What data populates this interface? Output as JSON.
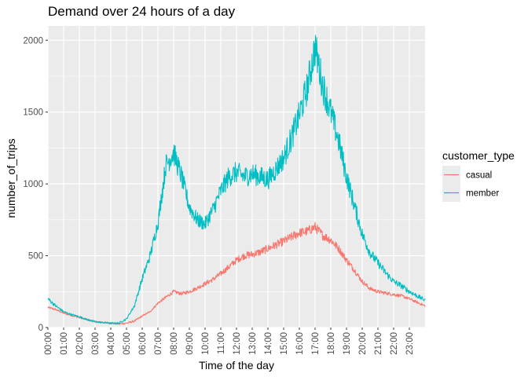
{
  "chart_data": {
    "type": "line",
    "title": "Demand over 24 hours of a day",
    "xlabel": "Time of the day",
    "ylabel": "number_of_trips",
    "x_unit": "hour of day (0-24)",
    "xlim": [
      0,
      24
    ],
    "ylim": [
      0,
      2100
    ],
    "y_ticks": [
      0,
      500,
      1000,
      1500,
      2000
    ],
    "x_tick_labels": [
      "00:00",
      "01:00",
      "02:00",
      "03:00",
      "04:00",
      "05:00",
      "06:00",
      "07:00",
      "08:00",
      "09:00",
      "10:00",
      "11:00",
      "12:00",
      "13:00",
      "14:00",
      "15:00",
      "16:00",
      "17:00",
      "18:00",
      "19:00",
      "20:00",
      "21:00",
      "22:00",
      "23:00"
    ],
    "grid": true,
    "legend": {
      "title": "customer_type",
      "placement": "right"
    },
    "series": [
      {
        "name": "casual",
        "color": "#F8766D",
        "x": [
          0,
          0.5,
          1,
          1.5,
          2,
          2.5,
          3,
          3.5,
          4,
          4.5,
          5,
          5.5,
          6,
          6.5,
          7,
          7.5,
          8,
          8.5,
          9,
          9.5,
          10,
          10.5,
          11,
          11.5,
          12,
          12.5,
          13,
          13.5,
          14,
          14.5,
          15,
          15.5,
          16,
          16.5,
          17,
          17.5,
          18,
          18.5,
          19,
          19.5,
          20,
          20.5,
          21,
          21.5,
          22,
          22.5,
          23,
          23.5,
          24
        ],
        "values": [
          140,
          125,
          100,
          85,
          70,
          55,
          40,
          35,
          30,
          25,
          30,
          45,
          80,
          110,
          170,
          210,
          250,
          235,
          250,
          275,
          305,
          335,
          375,
          420,
          470,
          500,
          510,
          525,
          550,
          575,
          600,
          630,
          660,
          670,
          700,
          640,
          610,
          550,
          470,
          400,
          320,
          270,
          250,
          240,
          230,
          220,
          200,
          175,
          150
        ]
      },
      {
        "name": "member",
        "color": "#00BFC4",
        "x": [
          0,
          0.5,
          1,
          1.5,
          2,
          2.5,
          3,
          3.5,
          4,
          4.5,
          5,
          5.5,
          6,
          6.5,
          7,
          7.5,
          8,
          8.5,
          9,
          9.5,
          10,
          10.5,
          11,
          11.5,
          12,
          12.5,
          13,
          13.5,
          14,
          14.5,
          15,
          15.5,
          16,
          16.5,
          17,
          17.5,
          18,
          18.5,
          19,
          19.5,
          20,
          20.5,
          21,
          21.5,
          22,
          22.5,
          23,
          23.5,
          24
        ],
        "values": [
          200,
          150,
          110,
          90,
          75,
          55,
          40,
          35,
          30,
          30,
          60,
          150,
          340,
          500,
          730,
          1130,
          1220,
          1050,
          840,
          750,
          720,
          820,
          950,
          1050,
          1080,
          1050,
          1070,
          1050,
          1030,
          1100,
          1180,
          1320,
          1480,
          1670,
          1950,
          1680,
          1500,
          1300,
          1050,
          850,
          650,
          520,
          450,
          380,
          320,
          290,
          250,
          220,
          190
        ]
      }
    ]
  }
}
